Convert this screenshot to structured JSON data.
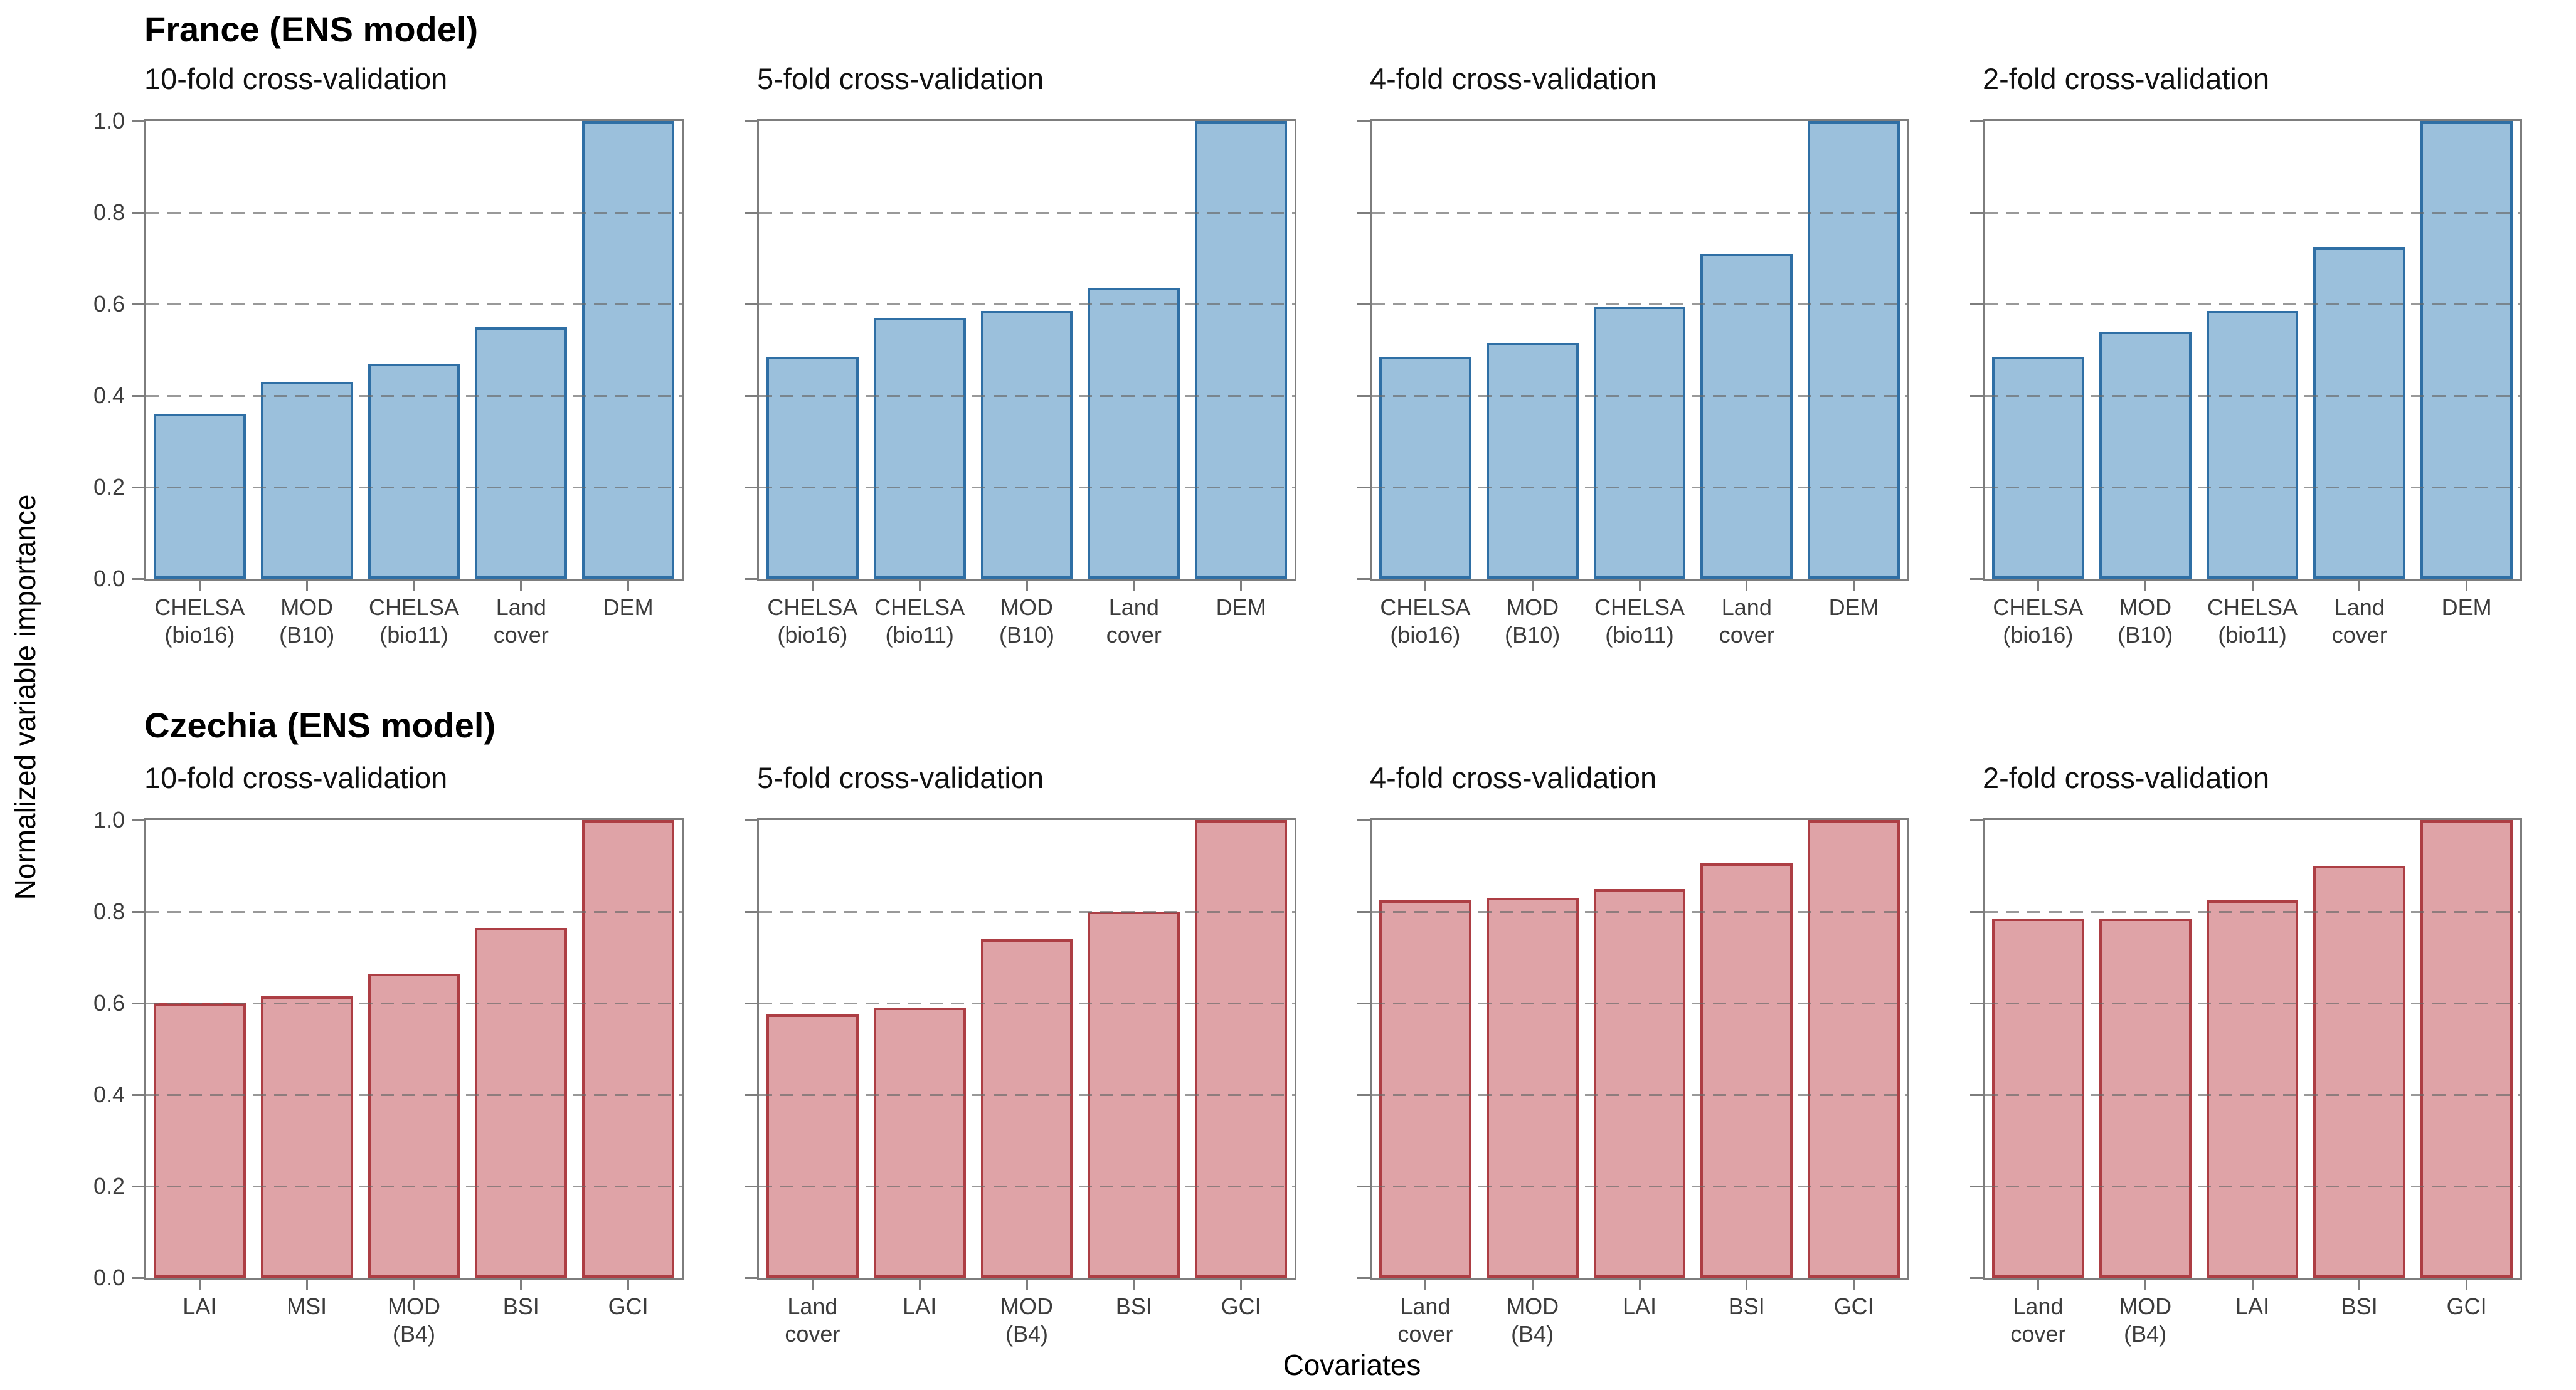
{
  "figure": {
    "y_axis_label": "Normalized variable importance",
    "x_axis_label": "Covariates",
    "y_tick_labels": [
      "0.0",
      "0.2",
      "0.4",
      "0.6",
      "0.8",
      "1.0"
    ],
    "sections": [
      {
        "heading": "France (ENS model)"
      },
      {
        "heading": "Czechia (ENS model)"
      }
    ],
    "colors": {
      "france_bar_fill": "#9bc0dc",
      "france_bar_edge": "#2f6fa5",
      "czechia_bar_fill": "#dfa3a7",
      "czechia_bar_edge": "#ad3e44",
      "spine": "#7d7d7d",
      "gridline": "#696969"
    }
  },
  "chart_data": [
    {
      "type": "bar",
      "section": "France (ENS model)",
      "title": "10-fold cross-validation",
      "categories": [
        "CHELSA\n(bio16)",
        "MOD\n(B10)",
        "CHELSA\n(bio11)",
        "Land\ncover",
        "DEM"
      ],
      "values": [
        0.36,
        0.43,
        0.47,
        0.55,
        1.0
      ],
      "ylim": [
        0,
        1
      ],
      "y_ticks": [
        0,
        0.2,
        0.4,
        0.6,
        0.8,
        1.0
      ],
      "gridlines": [
        0.2,
        0.4,
        0.6,
        0.8
      ],
      "grid_style": "dashed",
      "bar_fill": "#9bc0dc",
      "bar_edge": "#2f6fa5"
    },
    {
      "type": "bar",
      "section": "France (ENS model)",
      "title": "5-fold cross-validation",
      "categories": [
        "CHELSA\n(bio16)",
        "CHELSA\n(bio11)",
        "MOD\n(B10)",
        "Land\ncover",
        "DEM"
      ],
      "values": [
        0.485,
        0.57,
        0.585,
        0.635,
        1.0
      ],
      "ylim": [
        0,
        1
      ],
      "y_ticks": [
        0,
        0.2,
        0.4,
        0.6,
        0.8,
        1.0
      ],
      "gridlines": [
        0.2,
        0.4,
        0.6,
        0.8
      ],
      "grid_style": "dashed",
      "bar_fill": "#9bc0dc",
      "bar_edge": "#2f6fa5"
    },
    {
      "type": "bar",
      "section": "France (ENS model)",
      "title": "4-fold cross-validation",
      "categories": [
        "CHELSA\n(bio16)",
        "MOD\n(B10)",
        "CHELSA\n(bio11)",
        "Land\ncover",
        "DEM"
      ],
      "values": [
        0.485,
        0.515,
        0.595,
        0.71,
        1.0
      ],
      "ylim": [
        0,
        1
      ],
      "y_ticks": [
        0,
        0.2,
        0.4,
        0.6,
        0.8,
        1.0
      ],
      "gridlines": [
        0.2,
        0.4,
        0.6,
        0.8
      ],
      "grid_style": "dashed",
      "bar_fill": "#9bc0dc",
      "bar_edge": "#2f6fa5"
    },
    {
      "type": "bar",
      "section": "France (ENS model)",
      "title": "2-fold cross-validation",
      "categories": [
        "CHELSA\n(bio16)",
        "MOD\n(B10)",
        "CHELSA\n(bio11)",
        "Land\ncover",
        "DEM"
      ],
      "values": [
        0.485,
        0.54,
        0.585,
        0.725,
        1.0
      ],
      "ylim": [
        0,
        1
      ],
      "y_ticks": [
        0,
        0.2,
        0.4,
        0.6,
        0.8,
        1.0
      ],
      "gridlines": [
        0.2,
        0.4,
        0.6,
        0.8
      ],
      "grid_style": "dashed",
      "bar_fill": "#9bc0dc",
      "bar_edge": "#2f6fa5"
    },
    {
      "type": "bar",
      "section": "Czechia (ENS model)",
      "title": "10-fold cross-validation",
      "categories": [
        "LAI",
        "MSI",
        "MOD\n(B4)",
        "BSI",
        "GCI"
      ],
      "values": [
        0.6,
        0.615,
        0.665,
        0.765,
        1.0
      ],
      "ylim": [
        0,
        1
      ],
      "y_ticks": [
        0,
        0.2,
        0.4,
        0.6,
        0.8,
        1.0
      ],
      "gridlines": [
        0.2,
        0.4,
        0.6,
        0.8
      ],
      "grid_style": "dashed",
      "bar_fill": "#dfa3a7",
      "bar_edge": "#ad3e44"
    },
    {
      "type": "bar",
      "section": "Czechia (ENS model)",
      "title": "5-fold cross-validation",
      "categories": [
        "Land\ncover",
        "LAI",
        "MOD\n(B4)",
        "BSI",
        "GCI"
      ],
      "values": [
        0.575,
        0.59,
        0.74,
        0.8,
        1.0
      ],
      "ylim": [
        0,
        1
      ],
      "y_ticks": [
        0,
        0.2,
        0.4,
        0.6,
        0.8,
        1.0
      ],
      "gridlines": [
        0.2,
        0.4,
        0.6,
        0.8
      ],
      "grid_style": "dashed",
      "bar_fill": "#dfa3a7",
      "bar_edge": "#ad3e44"
    },
    {
      "type": "bar",
      "section": "Czechia (ENS model)",
      "title": "4-fold cross-validation",
      "categories": [
        "Land\ncover",
        "MOD\n(B4)",
        "LAI",
        "BSI",
        "GCI"
      ],
      "values": [
        0.825,
        0.83,
        0.85,
        0.905,
        1.0
      ],
      "ylim": [
        0,
        1
      ],
      "y_ticks": [
        0,
        0.2,
        0.4,
        0.6,
        0.8,
        1.0
      ],
      "gridlines": [
        0.2,
        0.4,
        0.6,
        0.8
      ],
      "grid_style": "dashed",
      "bar_fill": "#dfa3a7",
      "bar_edge": "#ad3e44"
    },
    {
      "type": "bar",
      "section": "Czechia (ENS model)",
      "title": "2-fold cross-validation",
      "categories": [
        "Land\ncover",
        "MOD\n(B4)",
        "LAI",
        "BSI",
        "GCI"
      ],
      "values": [
        0.785,
        0.785,
        0.825,
        0.9,
        1.0
      ],
      "ylim": [
        0,
        1
      ],
      "y_ticks": [
        0,
        0.2,
        0.4,
        0.6,
        0.8,
        1.0
      ],
      "gridlines": [
        0.2,
        0.4,
        0.6,
        0.8
      ],
      "grid_style": "dashed",
      "bar_fill": "#dfa3a7",
      "bar_edge": "#ad3e44"
    }
  ]
}
